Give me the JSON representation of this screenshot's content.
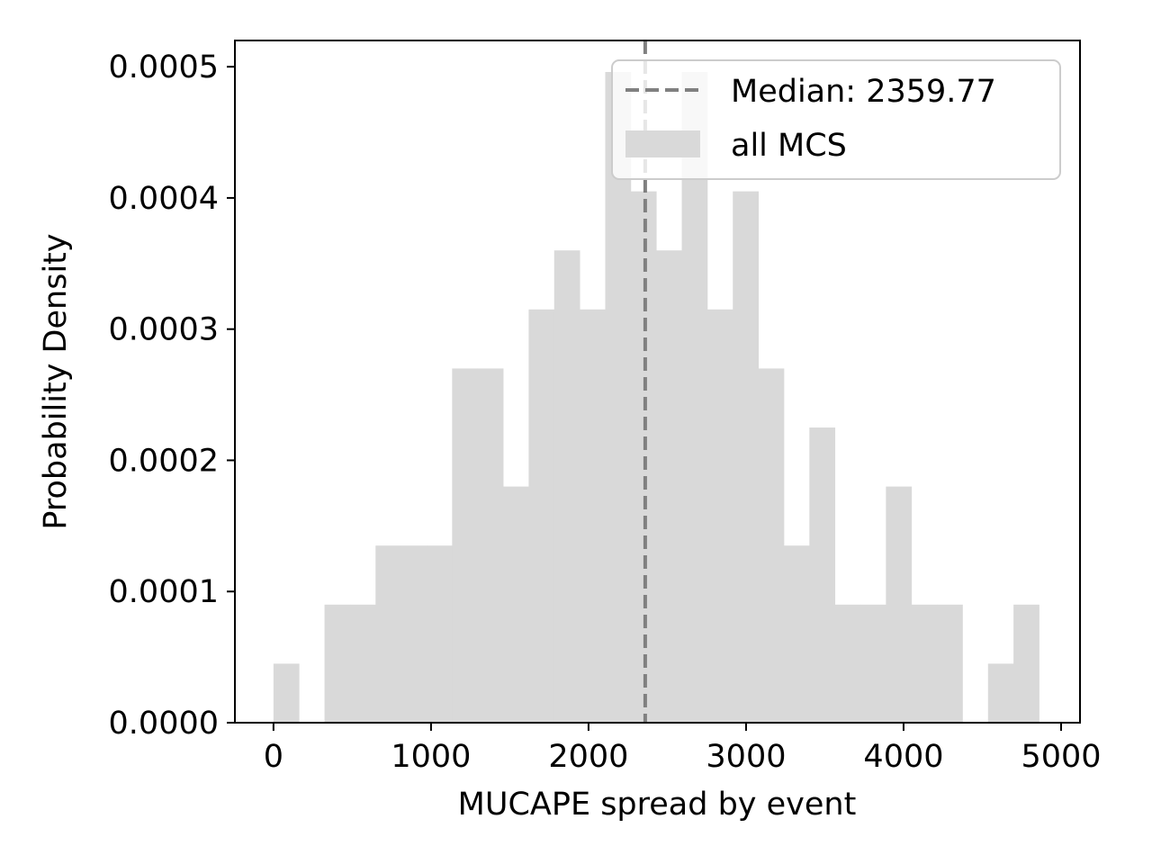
{
  "chart_data": {
    "type": "bar",
    "subtype": "histogram",
    "title": "",
    "xlabel": "MUCAPE spread by event",
    "ylabel": "Probability Density",
    "xlim": [
      -245,
      5120
    ],
    "ylim": [
      0,
      0.00052
    ],
    "xticks": [
      0,
      1000,
      2000,
      3000,
      4000,
      5000
    ],
    "xtick_labels": [
      "0",
      "1000",
      "2000",
      "3000",
      "4000",
      "5000"
    ],
    "yticks": [
      0,
      0.0001,
      0.0002,
      0.0003,
      0.0004,
      0.0005
    ],
    "ytick_labels": [
      "0.0000",
      "0.0001",
      "0.0002",
      "0.0003",
      "0.0004",
      "0.0005"
    ],
    "grid": false,
    "legend_position": "upper right",
    "series": [
      {
        "name": "all MCS",
        "color": "#d9d9d9",
        "bin_start": 0,
        "bin_width": 162,
        "values": [
          4.5e-05,
          0,
          9e-05,
          9e-05,
          0.000135,
          0.000135,
          0.000135,
          0.00027,
          0.00027,
          0.00018,
          0.000315,
          0.00036,
          0.000315,
          0.000496,
          0.000405,
          0.00036,
          0.000496,
          0.000315,
          0.000405,
          0.00027,
          0.000135,
          0.000225,
          9e-05,
          9e-05,
          0.00018,
          9e-05,
          9e-05,
          0,
          4.5e-05,
          9e-05
        ]
      }
    ],
    "median_line": {
      "x": 2359.77,
      "color": "#808080",
      "style": "dashed",
      "label": "Median: 2359.77"
    }
  }
}
